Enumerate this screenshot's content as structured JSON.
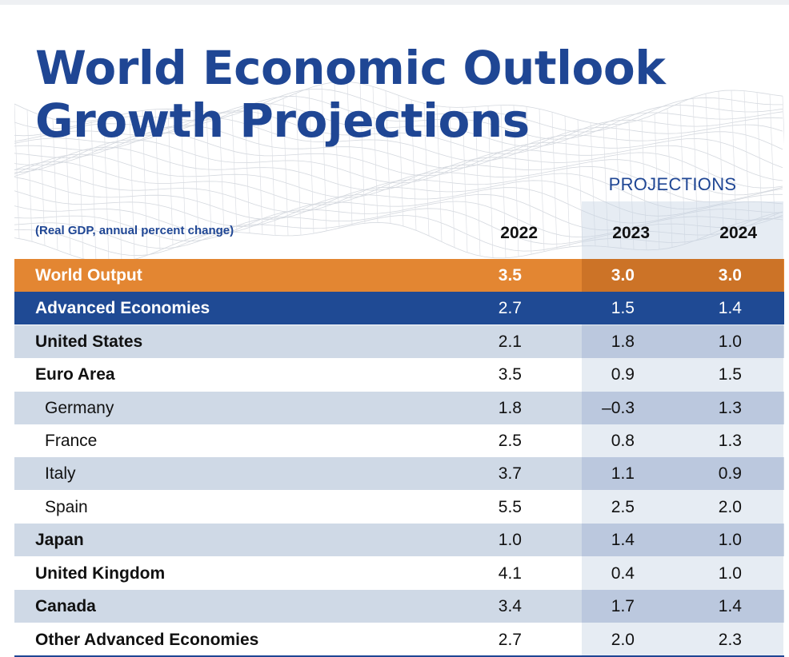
{
  "title": {
    "line1": "World Economic Outlook",
    "line2": "Growth Projections"
  },
  "projections_label": "PROJECTIONS",
  "subtitle": "(Real GDP, annual percent change)",
  "colors": {
    "title_blue": "#1f4694",
    "world_orange": "#e38632",
    "advanced_blue": "#1f4a94",
    "row_shade": "#cfd9e6"
  },
  "chart_data": {
    "type": "table",
    "columns": [
      "2022",
      "2023",
      "2024"
    ],
    "rows": [
      {
        "name": "World Output",
        "values": [
          "3.5",
          "3.0",
          "3.0"
        ]
      },
      {
        "name": "Advanced Economies",
        "values": [
          "2.7",
          "1.5",
          "1.4"
        ]
      },
      {
        "name": "United States",
        "values": [
          "2.1",
          "1.8",
          "1.0"
        ]
      },
      {
        "name": "Euro Area",
        "values": [
          "3.5",
          "0.9",
          "1.5"
        ]
      },
      {
        "name": "Germany",
        "values": [
          "1.8",
          "–0.3",
          "1.3"
        ]
      },
      {
        "name": "France",
        "values": [
          "2.5",
          "0.8",
          "1.3"
        ]
      },
      {
        "name": "Italy",
        "values": [
          "3.7",
          "1.1",
          "0.9"
        ]
      },
      {
        "name": "Spain",
        "values": [
          "5.5",
          "2.5",
          "2.0"
        ]
      },
      {
        "name": "Japan",
        "values": [
          "1.0",
          "1.4",
          "1.0"
        ]
      },
      {
        "name": "United Kingdom",
        "values": [
          "4.1",
          "0.4",
          "1.0"
        ]
      },
      {
        "name": "Canada",
        "values": [
          "3.4",
          "1.7",
          "1.4"
        ]
      },
      {
        "name": "Other Advanced Economies",
        "values": [
          "2.7",
          "2.0",
          "2.3"
        ]
      }
    ]
  }
}
